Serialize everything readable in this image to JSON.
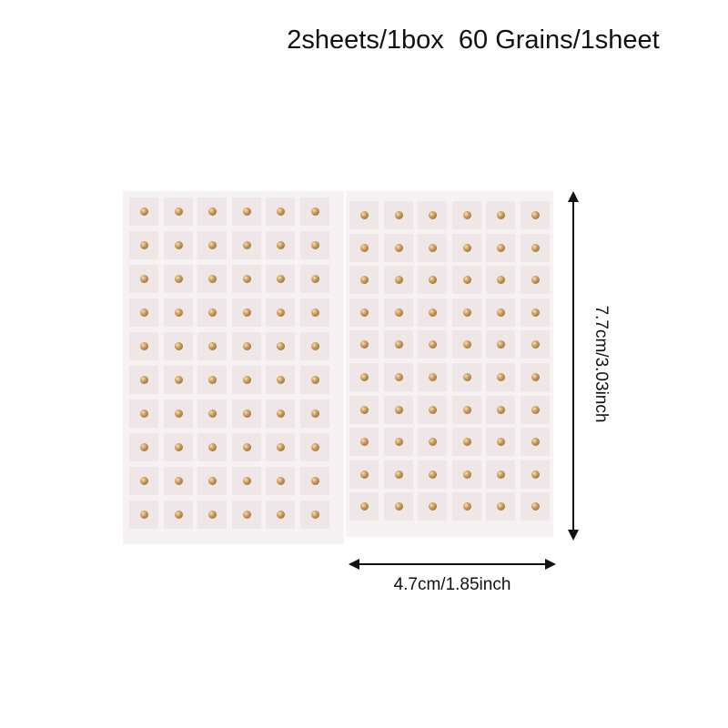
{
  "title": "2sheets/1box  60 Grains/1sheet",
  "height_label": "7.7cm/3.03inch",
  "width_label": "4.7cm/1.85inch",
  "sheets": [
    {
      "rows": 10,
      "cols": 6
    },
    {
      "rows": 10,
      "cols": 6
    }
  ],
  "colors": {
    "sheet": "#f6f2f3",
    "bead": "#c89a5a"
  }
}
